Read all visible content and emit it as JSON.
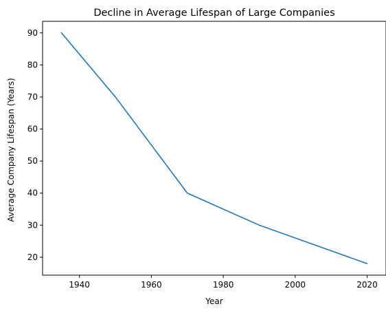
{
  "chart_data": {
    "type": "line",
    "title": "Decline in Average Lifespan of Large Companies",
    "xlabel": "Year",
    "ylabel": "Average Company Lifespan (Years)",
    "xlim": [
      1929.75,
      2025.25
    ],
    "ylim": [
      14.4,
      93.6
    ],
    "xticks": [
      1940,
      1960,
      1980,
      2000,
      2020
    ],
    "yticks": [
      20,
      30,
      40,
      50,
      60,
      70,
      80,
      90
    ],
    "grid": false,
    "legend": "none",
    "series": [
      {
        "color": "#1f77b4",
        "x": [
          1935,
          1950,
          1970,
          1990,
          2020
        ],
        "y": [
          90,
          70,
          40,
          30,
          18
        ]
      }
    ]
  }
}
